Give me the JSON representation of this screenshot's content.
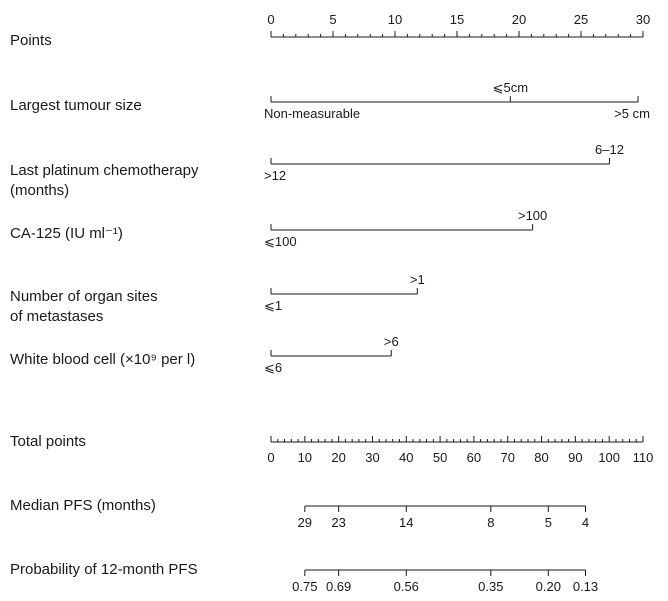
{
  "chart_data": {
    "type": "nomogram",
    "points_scale": {
      "label": "Points",
      "min": 0,
      "max": 30,
      "ticks": [
        0,
        5,
        10,
        15,
        20,
        25,
        30
      ]
    },
    "variables": [
      {
        "label_lines": [
          "Largest tumour size"
        ],
        "levels": [
          {
            "label": "Non-measurable",
            "points": 0
          },
          {
            "label": "⩽5cm",
            "points": 19.3
          },
          {
            "label": ">5 cm",
            "points": 29.6
          }
        ]
      },
      {
        "label_lines": [
          "Last platinum chemotherapy",
          "(months)"
        ],
        "levels": [
          {
            "label": ">12",
            "points": 0
          },
          {
            "label": "6–12",
            "points": 27.3
          }
        ]
      },
      {
        "label_lines": [
          "CA-125 (IU ml⁻¹)"
        ],
        "levels": [
          {
            "label": "⩽100",
            "points": 0
          },
          {
            "label": ">100",
            "points": 21.1
          }
        ]
      },
      {
        "label_lines": [
          "Number of organ sites",
          "of metastases"
        ],
        "levels": [
          {
            "label": "⩽1",
            "points": 0
          },
          {
            "label": ">1",
            "points": 11.8
          }
        ]
      },
      {
        "label_lines": [
          "White blood cell (×10⁹ per l)"
        ],
        "levels": [
          {
            "label": "⩽6",
            "points": 0
          },
          {
            "label": ">6",
            "points": 9.7
          }
        ]
      }
    ],
    "total_points": {
      "label": "Total points",
      "min": 0,
      "max": 110,
      "ticks": [
        0,
        10,
        20,
        30,
        40,
        50,
        60,
        70,
        80,
        90,
        100,
        110
      ]
    },
    "outcomes": [
      {
        "label": "Median PFS (months)",
        "axis_total_range": [
          10,
          93
        ],
        "ticks": [
          {
            "label": "29",
            "total": 10
          },
          {
            "label": "23",
            "total": 20
          },
          {
            "label": "14",
            "total": 40
          },
          {
            "label": "8",
            "total": 65
          },
          {
            "label": "5",
            "total": 82
          },
          {
            "label": "4",
            "total": 93
          }
        ]
      },
      {
        "label": "Probability of 12-month PFS",
        "axis_total_range": [
          10,
          93
        ],
        "ticks": [
          {
            "label": "0.75",
            "total": 10
          },
          {
            "label": "0.69",
            "total": 20
          },
          {
            "label": "0.56",
            "total": 40
          },
          {
            "label": "0.35",
            "total": 65
          },
          {
            "label": "0.20",
            "total": 82
          },
          {
            "label": "0.13",
            "total": 93
          }
        ]
      }
    ]
  }
}
